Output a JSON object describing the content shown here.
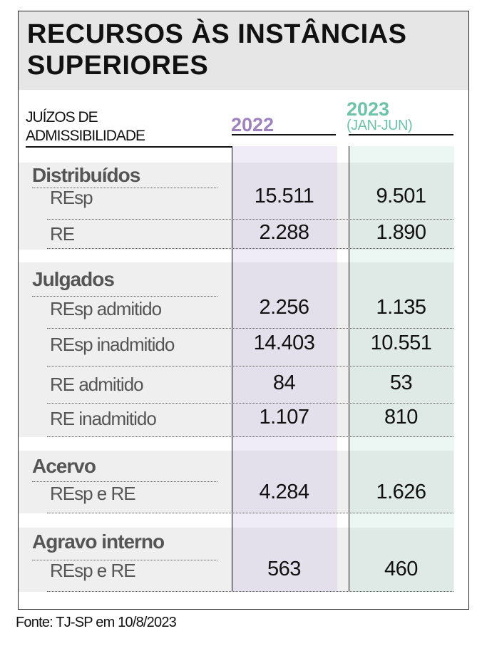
{
  "title": "RECURSOS ÀS INSTÂNCIAS SUPERIORES",
  "header": {
    "row_label": "JUÍZOS DE ADMISSIBILIDADE",
    "col_2022": "2022",
    "col_2023": "2023",
    "col_2023_note": "(JAN-JUN)"
  },
  "colors": {
    "col_2022": "#9f82bd",
    "col_2023": "#6cc3a8"
  },
  "groups": [
    {
      "name": "Distribuídos",
      "rows": [
        {
          "label": "REsp",
          "v2022": "15.511",
          "v2023": "9.501"
        },
        {
          "label": "RE",
          "v2022": "2.288",
          "v2023": "1.890"
        }
      ]
    },
    {
      "name": "Julgados",
      "rows": [
        {
          "label": "REsp admitido",
          "v2022": "2.256",
          "v2023": "1.135"
        },
        {
          "label": "REsp inadmitido",
          "v2022": "14.403",
          "v2023": "10.551"
        },
        {
          "label": "RE admitido",
          "v2022": "84",
          "v2023": "53"
        },
        {
          "label": "RE inadmitido",
          "v2022": "1.107",
          "v2023": "810"
        }
      ]
    },
    {
      "name": "Acervo",
      "rows": [
        {
          "label": "REsp e RE",
          "v2022": "4.284",
          "v2023": "1.626"
        }
      ]
    },
    {
      "name": "Agravo interno",
      "rows": [
        {
          "label": "REsp e RE",
          "v2022": "563",
          "v2023": "460"
        }
      ]
    }
  ],
  "source": "Fonte: TJ-SP em 10/8/2023"
}
